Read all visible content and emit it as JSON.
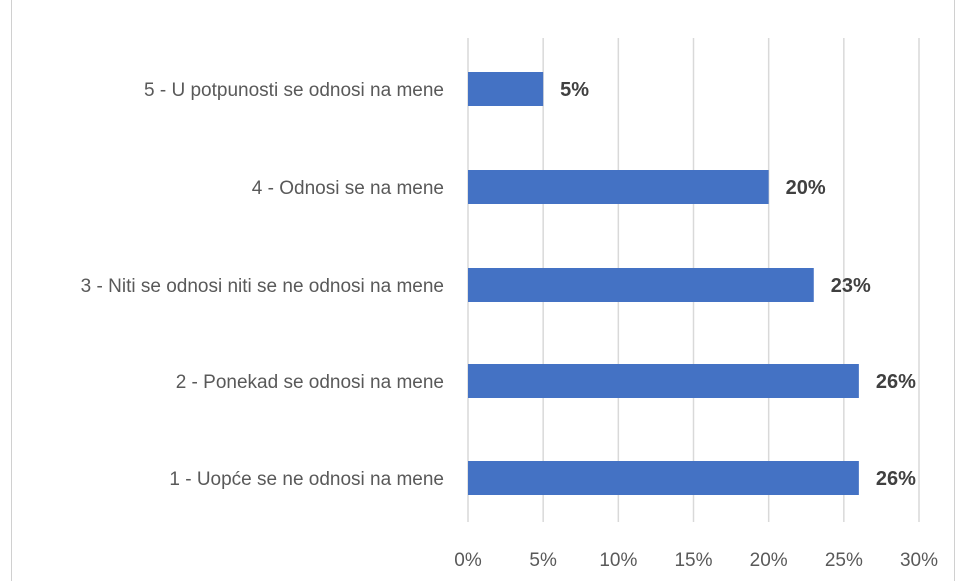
{
  "chart_data": {
    "type": "bar",
    "orientation": "horizontal",
    "title": "",
    "categories": [
      "5 - U potpunosti se odnosi na mene",
      "4 - Odnosi se na mene",
      "3 - Niti se odnosi niti se ne odnosi na mene",
      "2 - Ponekad se odnosi na mene",
      "1 - Uopće se ne odnosi na mene"
    ],
    "values": [
      5,
      20,
      23,
      26,
      26
    ],
    "data_labels": [
      "5%",
      "20%",
      "23%",
      "26%",
      "26%"
    ],
    "xlim": [
      0,
      30
    ],
    "x_ticks": [
      "0%",
      "5%",
      "10%",
      "15%",
      "20%",
      "25%",
      "30%"
    ],
    "xlabel": "",
    "ylabel": "",
    "grid": "vertical",
    "legend": "none",
    "bar_color": "#4472c4"
  }
}
